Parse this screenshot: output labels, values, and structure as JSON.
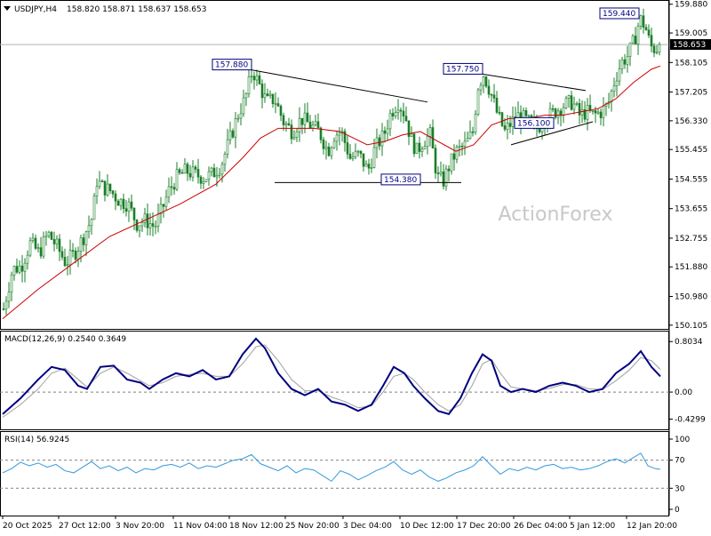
{
  "header": {
    "symbol": "USDJPY,H4",
    "ohlc": "158.820 158.871 158.637 158.653",
    "arrow_icon": "triangle-down-icon"
  },
  "watermark": "ActionForex",
  "chart_data": [
    {
      "type": "candlestick",
      "title": "USDJPY,H4 158.820 158.871 158.637 158.653",
      "ylim": [
        150.1,
        159.9
      ],
      "y_ticks": [
        "159.880",
        "159.005",
        "158.105",
        "157.205",
        "156.330",
        "155.455",
        "154.555",
        "153.655",
        "152.755",
        "151.880",
        "150.980",
        "150.105"
      ],
      "current_price": "158.653",
      "x_ticks": [
        "20 Oct 2025",
        "27 Oct 12:00",
        "3 Nov 20:00",
        "11 Nov 04:00",
        "18 Nov 12:00",
        "25 Nov 20:00",
        "3 Dec 04:00",
        "10 Dec 12:00",
        "17 Dec 20:00",
        "26 Dec 04:00",
        "5 Jan 12:00",
        "12 Jan 20:00"
      ],
      "close_path": [
        [
          0,
          150.6
        ],
        [
          10,
          151.8
        ],
        [
          20,
          151.9
        ],
        [
          30,
          152.6
        ],
        [
          40,
          152.3
        ],
        [
          50,
          152.9
        ],
        [
          60,
          152.5
        ],
        [
          70,
          152.0
        ],
        [
          80,
          152.3
        ],
        [
          90,
          152.8
        ],
        [
          100,
          153.4
        ],
        [
          105,
          154.5
        ],
        [
          112,
          154.3
        ],
        [
          120,
          154.2
        ],
        [
          130,
          153.9
        ],
        [
          140,
          153.8
        ],
        [
          150,
          153.2
        ],
        [
          160,
          153.3
        ],
        [
          170,
          153.1
        ],
        [
          178,
          153.6
        ],
        [
          186,
          154.2
        ],
        [
          195,
          154.6
        ],
        [
          205,
          154.8
        ],
        [
          215,
          154.7
        ],
        [
          225,
          154.6
        ],
        [
          235,
          154.7
        ],
        [
          245,
          155.0
        ],
        [
          255,
          155.8
        ],
        [
          265,
          156.6
        ],
        [
          272,
          157.0
        ],
        [
          280,
          157.88
        ],
        [
          288,
          157.4
        ],
        [
          296,
          156.9
        ],
        [
          305,
          157.0
        ],
        [
          315,
          156.3
        ],
        [
          325,
          156.0
        ],
        [
          335,
          156.4
        ],
        [
          345,
          156.2
        ],
        [
          355,
          156.0
        ],
        [
          365,
          155.4
        ],
        [
          372,
          155.9
        ],
        [
          380,
          156.0
        ],
        [
          390,
          155.2
        ],
        [
          400,
          155.3
        ],
        [
          410,
          154.8
        ],
        [
          418,
          155.5
        ],
        [
          428,
          155.9
        ],
        [
          436,
          156.6
        ],
        [
          444,
          156.9
        ],
        [
          452,
          156.5
        ],
        [
          458,
          155.8
        ],
        [
          465,
          155.4
        ],
        [
          472,
          155.7
        ],
        [
          480,
          155.9
        ],
        [
          488,
          154.6
        ],
        [
          495,
          154.5
        ],
        [
          502,
          155.0
        ],
        [
          510,
          155.4
        ],
        [
          520,
          155.6
        ],
        [
          528,
          156.0
        ],
        [
          534,
          157.4
        ],
        [
          540,
          157.75
        ],
        [
          548,
          157.2
        ],
        [
          556,
          156.5
        ],
        [
          564,
          156.0
        ],
        [
          572,
          156.3
        ],
        [
          580,
          156.5
        ],
        [
          590,
          156.3
        ],
        [
          600,
          156.1
        ],
        [
          610,
          156.4
        ],
        [
          620,
          156.6
        ],
        [
          630,
          156.8
        ],
        [
          640,
          156.9
        ],
        [
          648,
          156.5
        ],
        [
          656,
          156.6
        ],
        [
          664,
          156.5
        ],
        [
          672,
          156.6
        ],
        [
          680,
          156.8
        ],
        [
          688,
          157.6
        ],
        [
          695,
          158.1
        ],
        [
          702,
          158.3
        ],
        [
          710,
          158.8
        ],
        [
          716,
          159.44
        ],
        [
          722,
          159.2
        ],
        [
          728,
          158.6
        ],
        [
          734,
          158.5
        ],
        [
          738,
          158.653
        ]
      ],
      "moving_average": [
        [
          0,
          150.3
        ],
        [
          40,
          151.2
        ],
        [
          80,
          152.0
        ],
        [
          120,
          152.8
        ],
        [
          160,
          153.3
        ],
        [
          200,
          153.8
        ],
        [
          240,
          154.4
        ],
        [
          270,
          155.2
        ],
        [
          290,
          155.8
        ],
        [
          310,
          156.1
        ],
        [
          330,
          156.1
        ],
        [
          350,
          156.1
        ],
        [
          380,
          156.0
        ],
        [
          410,
          155.6
        ],
        [
          430,
          155.7
        ],
        [
          450,
          155.9
        ],
        [
          470,
          156.0
        ],
        [
          490,
          155.7
        ],
        [
          510,
          155.4
        ],
        [
          530,
          155.6
        ],
        [
          550,
          156.2
        ],
        [
          570,
          156.4
        ],
        [
          590,
          156.4
        ],
        [
          610,
          156.5
        ],
        [
          630,
          156.5
        ],
        [
          650,
          156.6
        ],
        [
          670,
          156.7
        ],
        [
          690,
          157.0
        ],
        [
          710,
          157.5
        ],
        [
          730,
          157.9
        ],
        [
          740,
          158.0
        ]
      ],
      "annotations": [
        {
          "label": "157.880",
          "value": 157.88,
          "x": 280
        },
        {
          "label": "154.380",
          "value": 154.38,
          "x": 470
        },
        {
          "label": "157.750",
          "value": 157.75,
          "x": 540
        },
        {
          "label": "156.100",
          "value": 156.1,
          "x": 620
        },
        {
          "label": "159.440",
          "value": 159.44,
          "x": 716
        }
      ],
      "trendlines": [
        {
          "from": [
            280,
            157.88
          ],
          "to": [
            478,
            156.9
          ]
        },
        {
          "from": [
            306,
            154.45
          ],
          "to": [
            516,
            154.45
          ]
        },
        {
          "from": [
            540,
            157.75
          ],
          "to": [
            656,
            157.25
          ]
        },
        {
          "from": [
            572,
            155.6
          ],
          "to": [
            664,
            156.3
          ]
        }
      ]
    },
    {
      "type": "line",
      "title": "MACD(12,26,9) 0.2540 0.3649",
      "ylim": [
        -0.55,
        0.92
      ],
      "y_ticks": [
        "0.8034",
        "0.00",
        "-0.4299"
      ],
      "macd": [
        [
          0,
          -0.35
        ],
        [
          20,
          -0.1
        ],
        [
          40,
          0.2
        ],
        [
          55,
          0.4
        ],
        [
          70,
          0.35
        ],
        [
          85,
          0.1
        ],
        [
          95,
          0.05
        ],
        [
          110,
          0.4
        ],
        [
          125,
          0.42
        ],
        [
          140,
          0.2
        ],
        [
          155,
          0.15
        ],
        [
          165,
          0.05
        ],
        [
          180,
          0.2
        ],
        [
          195,
          0.3
        ],
        [
          210,
          0.25
        ],
        [
          225,
          0.35
        ],
        [
          240,
          0.2
        ],
        [
          255,
          0.25
        ],
        [
          270,
          0.6
        ],
        [
          285,
          0.85
        ],
        [
          295,
          0.7
        ],
        [
          310,
          0.3
        ],
        [
          325,
          0.05
        ],
        [
          340,
          -0.05
        ],
        [
          355,
          0.05
        ],
        [
          370,
          -0.15
        ],
        [
          385,
          -0.2
        ],
        [
          400,
          -0.3
        ],
        [
          415,
          -0.2
        ],
        [
          428,
          0.1
        ],
        [
          440,
          0.4
        ],
        [
          452,
          0.3
        ],
        [
          462,
          0.1
        ],
        [
          475,
          -0.1
        ],
        [
          490,
          -0.3
        ],
        [
          502,
          -0.35
        ],
        [
          515,
          -0.1
        ],
        [
          528,
          0.3
        ],
        [
          540,
          0.6
        ],
        [
          550,
          0.5
        ],
        [
          560,
          0.1
        ],
        [
          572,
          0.0
        ],
        [
          585,
          0.05
        ],
        [
          600,
          0.0
        ],
        [
          615,
          0.1
        ],
        [
          630,
          0.15
        ],
        [
          645,
          0.1
        ],
        [
          660,
          0.0
        ],
        [
          675,
          0.05
        ],
        [
          690,
          0.3
        ],
        [
          705,
          0.45
        ],
        [
          718,
          0.65
        ],
        [
          730,
          0.4
        ],
        [
          740,
          0.25
        ]
      ],
      "signal": [
        [
          0,
          -0.4
        ],
        [
          20,
          -0.2
        ],
        [
          40,
          0.05
        ],
        [
          55,
          0.3
        ],
        [
          70,
          0.38
        ],
        [
          85,
          0.2
        ],
        [
          95,
          0.08
        ],
        [
          110,
          0.3
        ],
        [
          125,
          0.4
        ],
        [
          140,
          0.3
        ],
        [
          155,
          0.18
        ],
        [
          165,
          0.1
        ],
        [
          180,
          0.15
        ],
        [
          195,
          0.25
        ],
        [
          210,
          0.28
        ],
        [
          225,
          0.3
        ],
        [
          240,
          0.25
        ],
        [
          255,
          0.25
        ],
        [
          270,
          0.45
        ],
        [
          285,
          0.72
        ],
        [
          295,
          0.75
        ],
        [
          310,
          0.5
        ],
        [
          325,
          0.2
        ],
        [
          340,
          0.02
        ],
        [
          355,
          0.02
        ],
        [
          370,
          -0.08
        ],
        [
          385,
          -0.15
        ],
        [
          400,
          -0.25
        ],
        [
          415,
          -0.22
        ],
        [
          428,
          0.0
        ],
        [
          440,
          0.25
        ],
        [
          452,
          0.3
        ],
        [
          462,
          0.2
        ],
        [
          475,
          0.0
        ],
        [
          490,
          -0.2
        ],
        [
          502,
          -0.3
        ],
        [
          515,
          -0.2
        ],
        [
          528,
          0.1
        ],
        [
          540,
          0.45
        ],
        [
          550,
          0.52
        ],
        [
          560,
          0.3
        ],
        [
          572,
          0.08
        ],
        [
          585,
          0.05
        ],
        [
          600,
          0.02
        ],
        [
          615,
          0.06
        ],
        [
          630,
          0.12
        ],
        [
          645,
          0.12
        ],
        [
          660,
          0.05
        ],
        [
          675,
          0.04
        ],
        [
          690,
          0.18
        ],
        [
          705,
          0.35
        ],
        [
          718,
          0.55
        ],
        [
          730,
          0.5
        ],
        [
          740,
          0.36
        ]
      ]
    },
    {
      "type": "line",
      "title": "RSI(14) 56.9245",
      "ylim": [
        0,
        100
      ],
      "y_ticks": [
        "100",
        "70",
        "30",
        "0"
      ],
      "levels": [
        70,
        30
      ],
      "rsi": [
        [
          0,
          52
        ],
        [
          10,
          58
        ],
        [
          20,
          67
        ],
        [
          30,
          62
        ],
        [
          40,
          66
        ],
        [
          50,
          60
        ],
        [
          60,
          64
        ],
        [
          70,
          55
        ],
        [
          80,
          52
        ],
        [
          90,
          60
        ],
        [
          100,
          68
        ],
        [
          110,
          58
        ],
        [
          120,
          62
        ],
        [
          130,
          55
        ],
        [
          140,
          60
        ],
        [
          150,
          52
        ],
        [
          160,
          58
        ],
        [
          170,
          56
        ],
        [
          180,
          62
        ],
        [
          190,
          64
        ],
        [
          200,
          60
        ],
        [
          210,
          66
        ],
        [
          220,
          58
        ],
        [
          230,
          62
        ],
        [
          240,
          60
        ],
        [
          250,
          65
        ],
        [
          260,
          70
        ],
        [
          270,
          72
        ],
        [
          280,
          78
        ],
        [
          290,
          65
        ],
        [
          300,
          60
        ],
        [
          310,
          55
        ],
        [
          320,
          62
        ],
        [
          330,
          52
        ],
        [
          340,
          58
        ],
        [
          350,
          56
        ],
        [
          360,
          48
        ],
        [
          370,
          40
        ],
        [
          380,
          55
        ],
        [
          390,
          50
        ],
        [
          400,
          42
        ],
        [
          410,
          48
        ],
        [
          420,
          55
        ],
        [
          430,
          60
        ],
        [
          440,
          68
        ],
        [
          450,
          56
        ],
        [
          460,
          50
        ],
        [
          470,
          56
        ],
        [
          480,
          46
        ],
        [
          490,
          40
        ],
        [
          500,
          45
        ],
        [
          510,
          52
        ],
        [
          520,
          56
        ],
        [
          530,
          62
        ],
        [
          540,
          75
        ],
        [
          550,
          62
        ],
        [
          560,
          50
        ],
        [
          570,
          58
        ],
        [
          580,
          55
        ],
        [
          590,
          60
        ],
        [
          600,
          56
        ],
        [
          610,
          62
        ],
        [
          620,
          64
        ],
        [
          630,
          58
        ],
        [
          640,
          60
        ],
        [
          650,
          56
        ],
        [
          660,
          58
        ],
        [
          670,
          62
        ],
        [
          680,
          68
        ],
        [
          690,
          72
        ],
        [
          700,
          66
        ],
        [
          710,
          74
        ],
        [
          718,
          80
        ],
        [
          726,
          62
        ],
        [
          734,
          58
        ],
        [
          740,
          57
        ]
      ]
    }
  ],
  "indicator_labels": {
    "macd": "MACD(12,26,9) 0.2540 0.3649",
    "rsi": "RSI(14) 56.9245"
  },
  "colors": {
    "background": "#ffffff",
    "candle": "#1a7f28",
    "moving_average": "#cc0000",
    "macd_line": "#00007f",
    "signal_line": "#a0a0a0",
    "level_line": "#808080",
    "rsi_line": "#3399dd",
    "annotation_border": "#00007f",
    "trendline": "#000000"
  }
}
